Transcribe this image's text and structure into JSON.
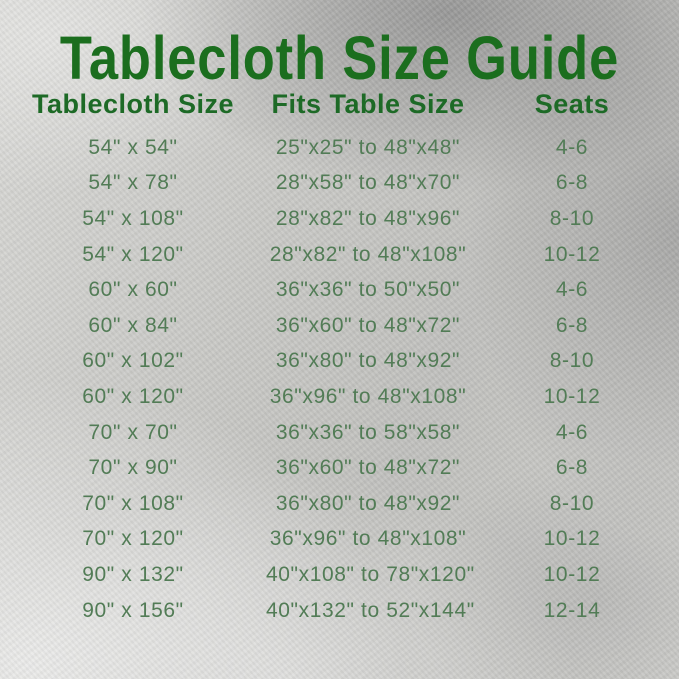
{
  "title": "Tablecloth Size Guide",
  "colors": {
    "title_green": "#1b6e1e",
    "header_green": "#1d6a26",
    "body_green": "#527c56",
    "background_silver": "#cbcbc8"
  },
  "chart_data": {
    "type": "table",
    "title": "Tablecloth Size Guide",
    "columns": [
      "Tablecloth Size",
      "Fits Table Size",
      "Seats"
    ],
    "rows": [
      [
        "54\" x 54\"",
        "25\"x25\" to 48\"x48\"",
        "4-6"
      ],
      [
        "54\" x 78\"",
        "28\"x58\" to 48\"x70\"",
        "6-8"
      ],
      [
        "54\" x 108\"",
        "28\"x82\" to 48\"x96\"",
        "8-10"
      ],
      [
        "54\" x 120\"",
        "28\"x82\" to 48\"x108\"",
        "10-12"
      ],
      [
        "60\" x 60\"",
        "36\"x36\" to 50\"x50\"",
        "4-6"
      ],
      [
        "60\" x 84\"",
        "36\"x60\" to 48\"x72\"",
        "6-8"
      ],
      [
        "60\" x 102\"",
        "36\"x80\" to 48\"x92\"",
        "8-10"
      ],
      [
        "60\" x 120\"",
        "36\"x96\" to 48\"x108\"",
        "10-12"
      ],
      [
        "70\" x 70\"",
        "36\"x36\" to 58\"x58\"",
        "4-6"
      ],
      [
        "70\" x 90\"",
        "36\"x60\" to 48\"x72\"",
        "6-8"
      ],
      [
        "70\" x 108\"",
        "36\"x80\" to 48\"x92\"",
        "8-10"
      ],
      [
        "70\" x 120\"",
        "36\"x96\" to 48\"x108\"",
        "10-12"
      ],
      [
        "90\" x 132\"",
        "40\"x108\" to 78\"x120\"",
        "10-12"
      ],
      [
        "90\" x 156\"",
        "40\"x132\" to 52\"x144\"",
        "12-14"
      ]
    ]
  }
}
